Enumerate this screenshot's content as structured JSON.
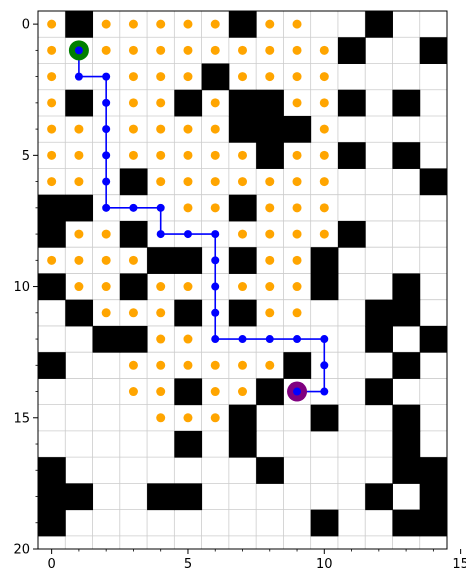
{
  "chart_data": {
    "type": "heatmap",
    "title": "",
    "xlabel": "",
    "ylabel": "",
    "xlim": [
      -0.5,
      14.5
    ],
    "ylim": [
      20,
      -0.5
    ],
    "x_ticks": [
      0,
      5,
      10,
      15
    ],
    "y_ticks": [
      0,
      5,
      10,
      15,
      20
    ],
    "grid": true,
    "grid_size": {
      "cols": 15,
      "rows": 20
    },
    "colors": {
      "obstacle": "#000000",
      "visited": "#ffa500",
      "path": "#0000ff",
      "start": "#008000",
      "goal": "#800080",
      "grid": "#cccccc"
    },
    "obstacles": [
      [
        1,
        0
      ],
      [
        7,
        0
      ],
      [
        12,
        0
      ],
      [
        11,
        1
      ],
      [
        14,
        1
      ],
      [
        6,
        2
      ],
      [
        1,
        3
      ],
      [
        5,
        3
      ],
      [
        7,
        3
      ],
      [
        8,
        3
      ],
      [
        11,
        3
      ],
      [
        13,
        3
      ],
      [
        7,
        4
      ],
      [
        8,
        4
      ],
      [
        9,
        4
      ],
      [
        8,
        5
      ],
      [
        11,
        5
      ],
      [
        13,
        5
      ],
      [
        3,
        6
      ],
      [
        14,
        6
      ],
      [
        0,
        7
      ],
      [
        1,
        7
      ],
      [
        7,
        7
      ],
      [
        0,
        8
      ],
      [
        3,
        8
      ],
      [
        11,
        8
      ],
      [
        4,
        9
      ],
      [
        5,
        9
      ],
      [
        7,
        9
      ],
      [
        10,
        9
      ],
      [
        0,
        10
      ],
      [
        3,
        10
      ],
      [
        10,
        10
      ],
      [
        13,
        10
      ],
      [
        1,
        11
      ],
      [
        5,
        11
      ],
      [
        7,
        11
      ],
      [
        12,
        11
      ],
      [
        13,
        11
      ],
      [
        2,
        12
      ],
      [
        3,
        12
      ],
      [
        12,
        12
      ],
      [
        14,
        12
      ],
      [
        0,
        13
      ],
      [
        9,
        13
      ],
      [
        13,
        13
      ],
      [
        5,
        14
      ],
      [
        8,
        14
      ],
      [
        12,
        14
      ],
      [
        7,
        15
      ],
      [
        10,
        15
      ],
      [
        13,
        15
      ],
      [
        5,
        16
      ],
      [
        7,
        16
      ],
      [
        13,
        16
      ],
      [
        0,
        17
      ],
      [
        8,
        17
      ],
      [
        13,
        17
      ],
      [
        14,
        17
      ],
      [
        0,
        18
      ],
      [
        1,
        18
      ],
      [
        4,
        18
      ],
      [
        5,
        18
      ],
      [
        12,
        18
      ],
      [
        14,
        18
      ],
      [
        0,
        19
      ],
      [
        10,
        19
      ],
      [
        13,
        19
      ],
      [
        14,
        19
      ]
    ],
    "visited": [
      [
        0,
        0
      ],
      [
        2,
        0
      ],
      [
        3,
        0
      ],
      [
        4,
        0
      ],
      [
        5,
        0
      ],
      [
        6,
        0
      ],
      [
        8,
        0
      ],
      [
        9,
        0
      ],
      [
        0,
        1
      ],
      [
        2,
        1
      ],
      [
        3,
        1
      ],
      [
        4,
        1
      ],
      [
        5,
        1
      ],
      [
        6,
        1
      ],
      [
        7,
        1
      ],
      [
        8,
        1
      ],
      [
        9,
        1
      ],
      [
        10,
        1
      ],
      [
        0,
        2
      ],
      [
        3,
        2
      ],
      [
        4,
        2
      ],
      [
        5,
        2
      ],
      [
        7,
        2
      ],
      [
        8,
        2
      ],
      [
        9,
        2
      ],
      [
        10,
        2
      ],
      [
        0,
        3
      ],
      [
        3,
        3
      ],
      [
        4,
        3
      ],
      [
        6,
        3
      ],
      [
        9,
        3
      ],
      [
        10,
        3
      ],
      [
        0,
        4
      ],
      [
        1,
        4
      ],
      [
        3,
        4
      ],
      [
        4,
        4
      ],
      [
        5,
        4
      ],
      [
        6,
        4
      ],
      [
        10,
        4
      ],
      [
        0,
        5
      ],
      [
        1,
        5
      ],
      [
        3,
        5
      ],
      [
        4,
        5
      ],
      [
        5,
        5
      ],
      [
        6,
        5
      ],
      [
        7,
        5
      ],
      [
        9,
        5
      ],
      [
        10,
        5
      ],
      [
        0,
        6
      ],
      [
        1,
        6
      ],
      [
        4,
        6
      ],
      [
        5,
        6
      ],
      [
        6,
        6
      ],
      [
        7,
        6
      ],
      [
        8,
        6
      ],
      [
        9,
        6
      ],
      [
        10,
        6
      ],
      [
        5,
        7
      ],
      [
        6,
        7
      ],
      [
        8,
        7
      ],
      [
        9,
        7
      ],
      [
        10,
        7
      ],
      [
        1,
        8
      ],
      [
        2,
        8
      ],
      [
        7,
        8
      ],
      [
        8,
        8
      ],
      [
        9,
        8
      ],
      [
        10,
        8
      ],
      [
        0,
        9
      ],
      [
        1,
        9
      ],
      [
        2,
        9
      ],
      [
        3,
        9
      ],
      [
        8,
        9
      ],
      [
        9,
        9
      ],
      [
        1,
        10
      ],
      [
        2,
        10
      ],
      [
        4,
        10
      ],
      [
        5,
        10
      ],
      [
        7,
        10
      ],
      [
        8,
        10
      ],
      [
        9,
        10
      ],
      [
        2,
        11
      ],
      [
        3,
        11
      ],
      [
        4,
        11
      ],
      [
        8,
        11
      ],
      [
        9,
        11
      ],
      [
        4,
        12
      ],
      [
        5,
        12
      ],
      [
        3,
        13
      ],
      [
        4,
        13
      ],
      [
        5,
        13
      ],
      [
        6,
        13
      ],
      [
        7,
        13
      ],
      [
        8,
        13
      ],
      [
        3,
        14
      ],
      [
        4,
        14
      ],
      [
        6,
        14
      ],
      [
        7,
        14
      ],
      [
        4,
        15
      ],
      [
        5,
        15
      ],
      [
        6,
        15
      ]
    ],
    "path": [
      [
        1,
        1
      ],
      [
        1,
        2
      ],
      [
        2,
        2
      ],
      [
        2,
        3
      ],
      [
        2,
        4
      ],
      [
        2,
        5
      ],
      [
        2,
        6
      ],
      [
        2,
        7
      ],
      [
        3,
        7
      ],
      [
        4,
        7
      ],
      [
        4,
        8
      ],
      [
        5,
        8
      ],
      [
        6,
        8
      ],
      [
        6,
        9
      ],
      [
        6,
        10
      ],
      [
        6,
        11
      ],
      [
        6,
        12
      ],
      [
        7,
        12
      ],
      [
        8,
        12
      ],
      [
        9,
        12
      ],
      [
        10,
        12
      ],
      [
        10,
        13
      ],
      [
        10,
        14
      ],
      [
        9,
        14
      ]
    ],
    "start": [
      1,
      1
    ],
    "goal": [
      9,
      14
    ]
  }
}
